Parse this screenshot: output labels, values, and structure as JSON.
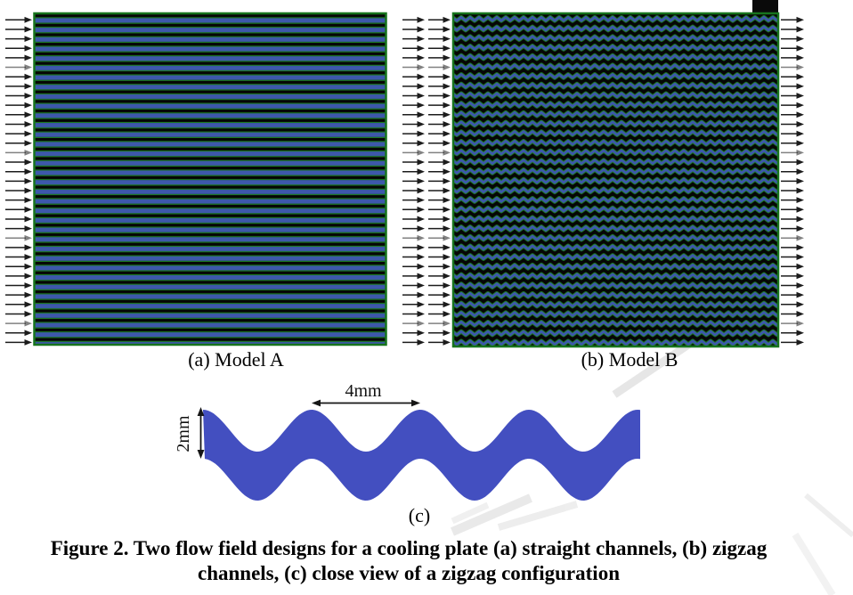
{
  "figure": {
    "panels": {
      "a": {
        "caption": "(a) Model A"
      },
      "b": {
        "caption": "(b) Model B"
      },
      "c": {
        "caption": "(c)",
        "wavelength_label": "4mm",
        "width_label": "2mm"
      }
    },
    "caption": {
      "line1": "Figure 2. Two flow field designs for a cooling plate (a) straight channels, (b) zigzag",
      "line2": "channels, (c) close view of a zigzag configuration"
    },
    "flow_arrows": {
      "rows_per_side": 35,
      "direction": "left-to-right"
    },
    "colors": {
      "channel_blue": "#3d58ab",
      "channel_wall_green": "#1b7c20",
      "plate_background": "#060606",
      "panel_border_green": "#17741d",
      "zigzag_closeup_blue": "#434fc0",
      "flow_arrow_black": "#1c1c1c"
    }
  }
}
